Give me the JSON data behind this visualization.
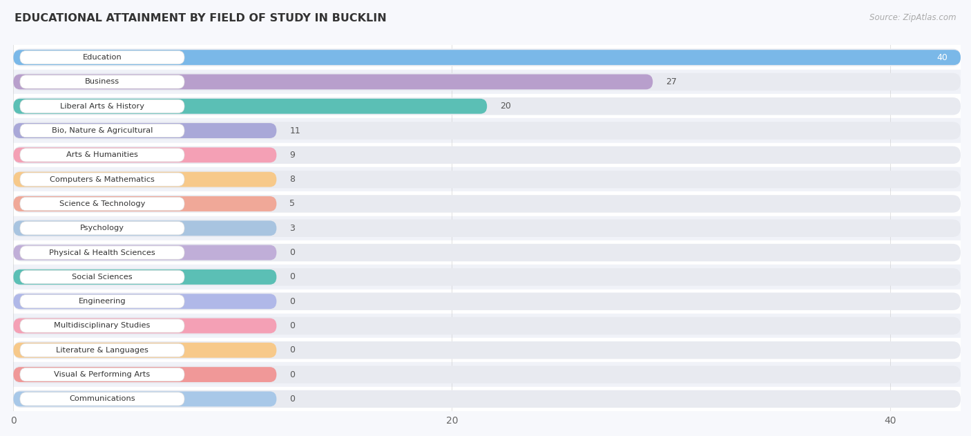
{
  "title": "EDUCATIONAL ATTAINMENT BY FIELD OF STUDY IN BUCKLIN",
  "source": "Source: ZipAtlas.com",
  "categories": [
    "Education",
    "Business",
    "Liberal Arts & History",
    "Bio, Nature & Agricultural",
    "Arts & Humanities",
    "Computers & Mathematics",
    "Science & Technology",
    "Psychology",
    "Physical & Health Sciences",
    "Social Sciences",
    "Engineering",
    "Multidisciplinary Studies",
    "Literature & Languages",
    "Visual & Performing Arts",
    "Communications"
  ],
  "values": [
    40,
    27,
    20,
    11,
    9,
    8,
    5,
    3,
    0,
    0,
    0,
    0,
    0,
    0,
    0
  ],
  "bar_colors": [
    "#7ab8e8",
    "#b89fcc",
    "#5bbfb5",
    "#a9a8d8",
    "#f4a0b5",
    "#f7c98a",
    "#f0a898",
    "#a8c4e0",
    "#c0aed8",
    "#5bbfb5",
    "#b0b8e8",
    "#f4a0b5",
    "#f7c98a",
    "#f09898",
    "#a8c8e8"
  ],
  "xlim_max": 40,
  "background_color": "#f7f8fc",
  "row_bg_light": "#ffffff",
  "row_bg_dark": "#f0f2f8",
  "track_color": "#e8eaf0",
  "label_bg": "#ffffff",
  "value_label_color": "#555555",
  "value_label_white": "#ffffff",
  "title_color": "#333333",
  "source_color": "#aaaaaa"
}
